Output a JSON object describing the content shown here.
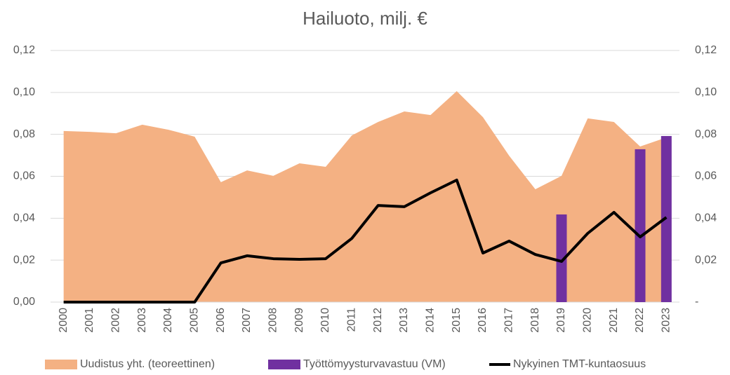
{
  "chart_data": {
    "type": "combo",
    "title": "Hailuoto, milj. €",
    "categories": [
      "2000",
      "2001",
      "2002",
      "2003",
      "2004",
      "2005",
      "2006",
      "2007",
      "2008",
      "2009",
      "2010",
      "2011",
      "2012",
      "2013",
      "2014",
      "2015",
      "2016",
      "2017",
      "2018",
      "2019",
      "2020",
      "2021",
      "2022",
      "2023"
    ],
    "series": [
      {
        "name": "Uudistus yht. (teoreettinen)",
        "kind": "area",
        "color": "#f4b183",
        "values": [
          0.0816,
          0.0812,
          0.0805,
          0.0846,
          0.0822,
          0.0789,
          0.0572,
          0.0628,
          0.0602,
          0.0662,
          0.0645,
          0.0795,
          0.0859,
          0.0909,
          0.0892,
          0.1006,
          0.0882,
          0.0698,
          0.0538,
          0.0602,
          0.0876,
          0.0859,
          0.0742,
          0.0785
        ]
      },
      {
        "name": "Työttömyysturvavastuu (VM)",
        "kind": "bar",
        "axis": "y2",
        "color": "#7030a0",
        "values": [
          null,
          null,
          null,
          null,
          null,
          null,
          null,
          null,
          null,
          null,
          null,
          null,
          null,
          null,
          null,
          null,
          null,
          null,
          null,
          0.0418,
          null,
          null,
          0.0729,
          0.0792
        ]
      },
      {
        "name": "Nykyinen TMT-kuntaosuus",
        "kind": "line",
        "color": "#000000",
        "values": [
          0,
          0,
          0,
          0,
          0,
          0,
          0.0187,
          0.0221,
          0.0207,
          0.0204,
          0.0207,
          0.0304,
          0.0461,
          0.0455,
          0.0521,
          0.0582,
          0.0234,
          0.0291,
          0.0227,
          0.0194,
          0.0328,
          0.0428,
          0.0311,
          0.0404
        ]
      }
    ],
    "ylim": [
      0,
      0.12
    ],
    "yticks": [
      {
        "value": 0,
        "label": "0,00"
      },
      {
        "value": 0.02,
        "label": "0,02"
      },
      {
        "value": 0.04,
        "label": "0,04"
      },
      {
        "value": 0.06,
        "label": "0,06"
      },
      {
        "value": 0.08,
        "label": "0,08"
      },
      {
        "value": 0.1,
        "label": "0,10"
      },
      {
        "value": 0.12,
        "label": "0,12"
      }
    ],
    "y2lim": [
      0,
      0.12
    ],
    "y2ticks": [
      {
        "value": 0,
        "label": "-"
      },
      {
        "value": 0.02,
        "label": "0,02"
      },
      {
        "value": 0.04,
        "label": "0,04"
      },
      {
        "value": 0.06,
        "label": "0,06"
      },
      {
        "value": 0.08,
        "label": "0,08"
      },
      {
        "value": 0.1,
        "label": "0,10"
      },
      {
        "value": 0.12,
        "label": "0,12"
      }
    ],
    "grid": true,
    "legend": "bottom"
  }
}
